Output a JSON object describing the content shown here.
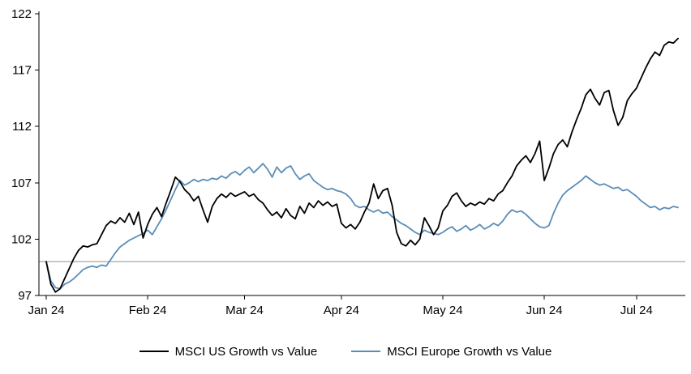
{
  "chart_data": {
    "type": "line",
    "title": "",
    "xlabel": "",
    "ylabel": "",
    "x_tick_labels": [
      "Jan 24",
      "Feb 24",
      "Mar 24",
      "Apr 24",
      "May 24",
      "Jun 24",
      "Jul 24"
    ],
    "x_tick_indices": [
      0,
      22,
      43,
      64,
      86,
      108,
      128
    ],
    "y_ticks": [
      97,
      102,
      107,
      112,
      117,
      122
    ],
    "ylim": [
      97,
      122
    ],
    "grid": "off",
    "legend_position": "bottom-center",
    "reference_line": 100,
    "reference_line_color": "#a6a6a6",
    "axis_color": "#000000",
    "series": [
      {
        "name": "MSCI US Growth vs Value",
        "color": "#000000",
        "values": [
          100.0,
          98.0,
          97.3,
          97.6,
          98.5,
          99.4,
          100.3,
          101.0,
          101.4,
          101.3,
          101.5,
          101.6,
          102.4,
          103.2,
          103.6,
          103.4,
          103.9,
          103.5,
          104.3,
          103.3,
          104.4,
          102.1,
          103.3,
          104.2,
          104.8,
          104.0,
          105.2,
          106.3,
          107.5,
          107.1,
          106.4,
          106.0,
          105.4,
          105.8,
          104.6,
          103.5,
          104.9,
          105.6,
          106.0,
          105.7,
          106.1,
          105.8,
          106.0,
          106.2,
          105.8,
          106.0,
          105.5,
          105.2,
          104.6,
          104.1,
          104.4,
          103.9,
          104.7,
          104.1,
          103.8,
          104.9,
          104.3,
          105.2,
          104.8,
          105.4,
          105.0,
          105.3,
          104.9,
          105.1,
          103.4,
          103.0,
          103.3,
          102.9,
          103.5,
          104.4,
          105.2,
          106.9,
          105.6,
          106.3,
          106.5,
          105.0,
          102.6,
          101.6,
          101.4,
          101.9,
          101.5,
          102.0,
          103.9,
          103.2,
          102.4,
          103.0,
          104.5,
          105.0,
          105.8,
          106.1,
          105.4,
          104.9,
          105.2,
          105.0,
          105.3,
          105.1,
          105.6,
          105.4,
          106.0,
          106.3,
          107.0,
          107.6,
          108.5,
          109.0,
          109.4,
          108.8,
          109.6,
          110.7,
          107.2,
          108.3,
          109.6,
          110.4,
          110.8,
          110.2,
          111.5,
          112.6,
          113.6,
          114.8,
          115.3,
          114.5,
          113.9,
          115.0,
          115.2,
          113.4,
          112.1,
          112.8,
          114.3,
          114.9,
          115.4,
          116.3,
          117.2,
          118.0,
          118.6,
          118.3,
          119.2,
          119.5,
          119.4,
          119.8
        ]
      },
      {
        "name": "MSCI Europe Growth vs Value",
        "color": "#5b8db9",
        "values": [
          100.0,
          98.3,
          97.7,
          97.6,
          98.0,
          98.2,
          98.5,
          98.9,
          99.3,
          99.5,
          99.6,
          99.5,
          99.7,
          99.6,
          100.2,
          100.8,
          101.3,
          101.6,
          101.9,
          102.1,
          102.3,
          102.5,
          102.8,
          102.4,
          103.1,
          103.8,
          104.6,
          105.5,
          106.4,
          107.2,
          106.8,
          107.0,
          107.3,
          107.1,
          107.3,
          107.2,
          107.4,
          107.3,
          107.6,
          107.4,
          107.8,
          108.0,
          107.7,
          108.1,
          108.4,
          107.9,
          108.3,
          108.7,
          108.2,
          107.5,
          108.4,
          107.9,
          108.3,
          108.5,
          107.8,
          107.3,
          107.6,
          107.8,
          107.2,
          106.9,
          106.6,
          106.4,
          106.5,
          106.3,
          106.2,
          106.0,
          105.6,
          105.0,
          104.8,
          104.9,
          104.6,
          104.4,
          104.6,
          104.3,
          104.4,
          104.0,
          103.7,
          103.4,
          103.2,
          102.9,
          102.6,
          102.4,
          102.8,
          102.6,
          102.5,
          102.4,
          102.6,
          102.9,
          103.1,
          102.7,
          102.9,
          103.2,
          102.8,
          103.0,
          103.3,
          102.9,
          103.1,
          103.4,
          103.2,
          103.6,
          104.2,
          104.6,
          104.4,
          104.5,
          104.2,
          103.8,
          103.4,
          103.1,
          103.0,
          103.2,
          104.3,
          105.2,
          105.9,
          106.3,
          106.6,
          106.9,
          107.2,
          107.6,
          107.3,
          107.0,
          106.8,
          106.9,
          106.7,
          106.5,
          106.6,
          106.3,
          106.4,
          106.1,
          105.8,
          105.4,
          105.1,
          104.8,
          104.9,
          104.6,
          104.8,
          104.7,
          104.9,
          104.8
        ]
      }
    ]
  }
}
